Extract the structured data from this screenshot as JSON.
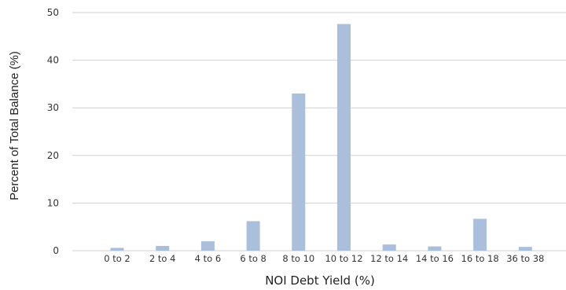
{
  "chart_data": {
    "type": "bar",
    "categories": [
      "0 to 2",
      "2 to 4",
      "4 to 6",
      "6 to 8",
      "8 to 10",
      "10 to 12",
      "12 to 14",
      "14 to 16",
      "16 to 18",
      "36 to 38"
    ],
    "values": [
      0.6,
      1.0,
      2.0,
      6.2,
      33.0,
      47.6,
      1.3,
      0.9,
      6.7,
      0.8
    ],
    "xlabel": "NOI Debt Yield (%)",
    "ylabel": "Percent of Total Balance (%)",
    "ylim": [
      0,
      50
    ],
    "yticks": [
      0,
      10,
      20,
      30,
      40,
      50
    ],
    "grid": true,
    "bar_color": "#a9bfdc",
    "grid_color": "#d0d0d0"
  }
}
